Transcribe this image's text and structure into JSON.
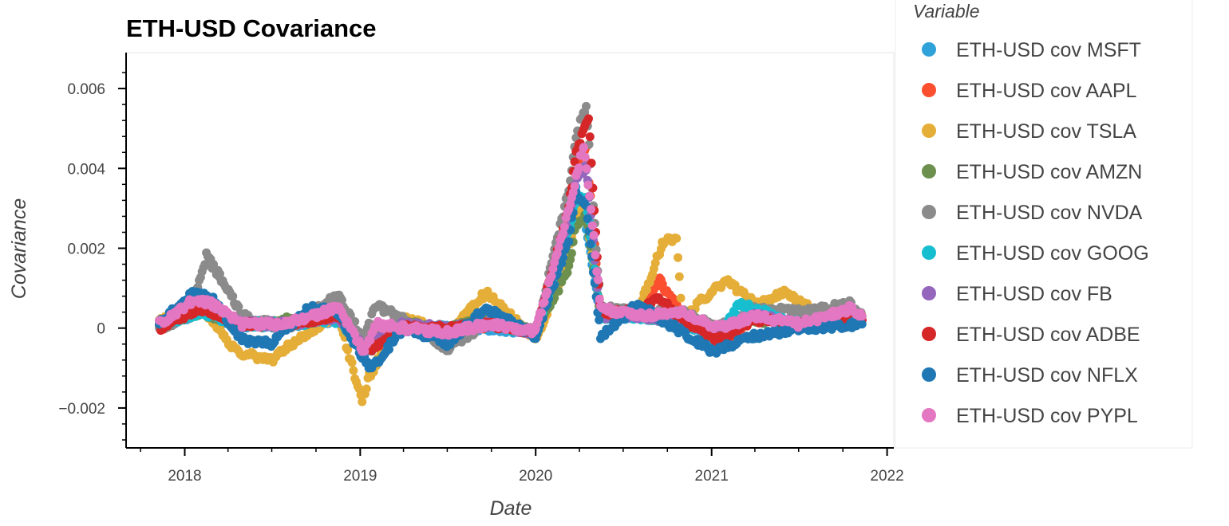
{
  "chart_data": {
    "type": "scatter",
    "title": "ETH-USD Covariance",
    "xlabel": "Date",
    "ylabel": "Covariance",
    "xlim": [
      "2017-09-01",
      "2022-01-15"
    ],
    "ylim": [
      -0.003,
      0.0069
    ],
    "x_ticks": [
      "2018-01-01",
      "2019-01-01",
      "2020-01-01",
      "2021-01-01",
      "2022-01-01"
    ],
    "x_tick_labels": [
      "2018",
      "2019",
      "2020",
      "2021",
      "2022"
    ],
    "y_ticks": [
      -0.002,
      0,
      0.002,
      0.004,
      0.006
    ],
    "y_tick_labels": [
      "−0.002",
      "0",
      "0.002",
      "0.004",
      "0.006"
    ],
    "legend_title": "Variable",
    "legend_position": "right",
    "grid": false,
    "series": [
      {
        "name": "ETH-USD cov MSFT",
        "color": "#30a2da",
        "points": [
          [
            "2017-11-09",
            5e-05
          ],
          [
            "2018-02-01",
            0.0004
          ],
          [
            "2018-05-01",
            5e-05
          ],
          [
            "2018-08-01",
            0.0001
          ],
          [
            "2018-11-15",
            0.0002
          ],
          [
            "2019-01-10",
            -0.0006
          ],
          [
            "2019-04-01",
            0.0
          ],
          [
            "2019-07-01",
            0.0
          ],
          [
            "2019-10-01",
            0.0
          ],
          [
            "2020-01-01",
            -0.0001
          ],
          [
            "2020-03-10",
            0.0025
          ],
          [
            "2020-03-25",
            0.0035
          ],
          [
            "2020-04-15",
            0.0025
          ],
          [
            "2020-05-15",
            0.0003
          ],
          [
            "2020-08-01",
            0.0003
          ],
          [
            "2020-11-01",
            0.0002
          ],
          [
            "2021-01-15",
            -0.0002
          ],
          [
            "2021-04-01",
            0.0003
          ],
          [
            "2021-07-01",
            0.0001
          ],
          [
            "2021-11-10",
            0.0002
          ]
        ]
      },
      {
        "name": "ETH-USD cov AAPL",
        "color": "#fc4f30",
        "points": [
          [
            "2017-11-09",
            0.0
          ],
          [
            "2018-02-01",
            0.0005
          ],
          [
            "2018-05-01",
            0.0001
          ],
          [
            "2018-08-01",
            0.0001
          ],
          [
            "2018-11-15",
            0.0003
          ],
          [
            "2019-01-10",
            -0.0005
          ],
          [
            "2019-04-01",
            0.0
          ],
          [
            "2019-07-01",
            -0.0001
          ],
          [
            "2019-10-01",
            0.0001
          ],
          [
            "2020-01-01",
            -0.0001
          ],
          [
            "2020-03-10",
            0.0028
          ],
          [
            "2020-03-25",
            0.0042
          ],
          [
            "2020-04-15",
            0.0045
          ],
          [
            "2020-05-15",
            0.0004
          ],
          [
            "2020-08-01",
            0.0004
          ],
          [
            "2020-09-15",
            0.0012
          ],
          [
            "2020-11-01",
            0.0003
          ],
          [
            "2021-01-15",
            -0.0004
          ],
          [
            "2021-04-01",
            0.0003
          ],
          [
            "2021-07-01",
            0.0001
          ],
          [
            "2021-11-10",
            0.0002
          ]
        ]
      },
      {
        "name": "ETH-USD cov TSLA",
        "color": "#e5ae38",
        "points": [
          [
            "2017-11-09",
            0.0002
          ],
          [
            "2018-02-01",
            0.0006
          ],
          [
            "2018-04-20",
            -0.0006
          ],
          [
            "2018-07-01",
            -0.0008
          ],
          [
            "2018-09-01",
            -0.0002
          ],
          [
            "2018-11-15",
            0.0003
          ],
          [
            "2019-01-05",
            -0.0018
          ],
          [
            "2019-01-20",
            -0.0012
          ],
          [
            "2019-04-01",
            0.0003
          ],
          [
            "2019-07-01",
            -0.0002
          ],
          [
            "2019-09-20",
            0.0009
          ],
          [
            "2020-01-01",
            -0.0003
          ],
          [
            "2020-03-10",
            0.0018
          ],
          [
            "2020-03-25",
            0.003
          ],
          [
            "2020-04-15",
            0.0028
          ],
          [
            "2020-05-15",
            0.0004
          ],
          [
            "2020-08-01",
            0.0004
          ],
          [
            "2020-09-20",
            0.0021
          ],
          [
            "2020-10-20",
            0.0023
          ],
          [
            "2020-11-01",
            0.0003
          ],
          [
            "2021-02-01",
            0.0012
          ],
          [
            "2021-04-01",
            0.0006
          ],
          [
            "2021-06-01",
            0.0009
          ],
          [
            "2021-09-01",
            0.0002
          ],
          [
            "2021-11-10",
            0.0003
          ]
        ]
      },
      {
        "name": "ETH-USD cov AMZN",
        "color": "#6d904f",
        "points": [
          [
            "2017-11-09",
            0.0001
          ],
          [
            "2018-02-01",
            0.0004
          ],
          [
            "2018-05-01",
            0.0001
          ],
          [
            "2018-08-01",
            0.0002
          ],
          [
            "2018-11-15",
            0.0003
          ],
          [
            "2019-01-10",
            -0.0004
          ],
          [
            "2019-04-01",
            0.0001
          ],
          [
            "2019-07-01",
            0.0
          ],
          [
            "2019-10-01",
            0.0002
          ],
          [
            "2020-01-01",
            -0.0001
          ],
          [
            "2020-03-10",
            0.0015
          ],
          [
            "2020-03-25",
            0.0026
          ],
          [
            "2020-04-15",
            0.0028
          ],
          [
            "2020-05-15",
            0.0003
          ],
          [
            "2020-08-01",
            0.0003
          ],
          [
            "2020-11-01",
            0.0002
          ],
          [
            "2021-01-15",
            0.0
          ],
          [
            "2021-04-01",
            0.0002
          ],
          [
            "2021-07-01",
            0.0001
          ],
          [
            "2021-11-10",
            0.0002
          ]
        ]
      },
      {
        "name": "ETH-USD cov NVDA",
        "color": "#8b8b8b",
        "points": [
          [
            "2017-11-09",
            0.0
          ],
          [
            "2018-01-10",
            0.0003
          ],
          [
            "2018-02-15",
            0.0018
          ],
          [
            "2018-03-15",
            0.0013
          ],
          [
            "2018-05-01",
            0.0003
          ],
          [
            "2018-08-01",
            0.0
          ],
          [
            "2018-11-15",
            0.0008
          ],
          [
            "2019-01-10",
            -0.0003
          ],
          [
            "2019-02-01",
            0.0006
          ],
          [
            "2019-04-01",
            0.0002
          ],
          [
            "2019-07-01",
            -0.0005
          ],
          [
            "2019-10-01",
            0.0002
          ],
          [
            "2020-01-01",
            -0.0001
          ],
          [
            "2020-03-10",
            0.0035
          ],
          [
            "2020-03-25",
            0.0048
          ],
          [
            "2020-04-15",
            0.0056
          ],
          [
            "2020-05-15",
            0.0005
          ],
          [
            "2020-08-01",
            0.0004
          ],
          [
            "2020-11-01",
            0.0004
          ],
          [
            "2021-01-15",
            0.0
          ],
          [
            "2021-04-01",
            0.0005
          ],
          [
            "2021-07-01",
            0.0004
          ],
          [
            "2021-10-15",
            0.0006
          ],
          [
            "2021-11-10",
            0.0003
          ]
        ]
      },
      {
        "name": "ETH-USD cov GOOG",
        "color": "#17becf",
        "points": [
          [
            "2017-11-09",
            0.0001
          ],
          [
            "2018-02-01",
            0.0004
          ],
          [
            "2018-05-01",
            0.0001
          ],
          [
            "2018-08-01",
            0.0001
          ],
          [
            "2018-11-15",
            0.0002
          ],
          [
            "2019-01-10",
            -0.0005
          ],
          [
            "2019-04-01",
            0.0
          ],
          [
            "2019-07-01",
            0.0
          ],
          [
            "2019-10-01",
            0.0001
          ],
          [
            "2020-01-01",
            -0.0001
          ],
          [
            "2020-03-10",
            0.0024
          ],
          [
            "2020-03-25",
            0.0033
          ],
          [
            "2020-04-15",
            0.0032
          ],
          [
            "2020-05-15",
            0.0003
          ],
          [
            "2020-08-01",
            0.0003
          ],
          [
            "2020-11-01",
            0.0002
          ],
          [
            "2021-01-05",
            -0.0003
          ],
          [
            "2021-03-01",
            0.0006
          ],
          [
            "2021-07-01",
            0.0001
          ],
          [
            "2021-11-10",
            0.0002
          ]
        ]
      },
      {
        "name": "ETH-USD cov FB",
        "color": "#9467bd",
        "points": [
          [
            "2017-11-09",
            0.0001
          ],
          [
            "2018-02-01",
            0.0005
          ],
          [
            "2018-05-01",
            0.0001
          ],
          [
            "2018-08-01",
            0.0001
          ],
          [
            "2018-11-15",
            0.0003
          ],
          [
            "2019-01-10",
            -0.0005
          ],
          [
            "2019-04-01",
            0.0001
          ],
          [
            "2019-07-01",
            0.0
          ],
          [
            "2019-10-01",
            0.0001
          ],
          [
            "2020-01-01",
            -0.0001
          ],
          [
            "2020-03-10",
            0.0027
          ],
          [
            "2020-03-25",
            0.0038
          ],
          [
            "2020-04-15",
            0.004
          ],
          [
            "2020-05-15",
            0.0003
          ],
          [
            "2020-08-01",
            0.0003
          ],
          [
            "2020-11-01",
            0.0002
          ],
          [
            "2021-01-15",
            -0.0002
          ],
          [
            "2021-04-01",
            0.0003
          ],
          [
            "2021-07-01",
            0.0001
          ],
          [
            "2021-11-10",
            0.0002
          ]
        ]
      },
      {
        "name": "ETH-USD cov ADBE",
        "color": "#d62728",
        "points": [
          [
            "2017-11-09",
            0.0
          ],
          [
            "2018-02-01",
            0.0005
          ],
          [
            "2018-05-01",
            0.0001
          ],
          [
            "2018-08-01",
            0.0001
          ],
          [
            "2018-11-15",
            0.0003
          ],
          [
            "2019-01-10",
            -0.0006
          ],
          [
            "2019-04-01",
            0.0
          ],
          [
            "2019-07-01",
            0.0
          ],
          [
            "2019-10-01",
            0.0001
          ],
          [
            "2020-01-01",
            -0.0001
          ],
          [
            "2020-03-10",
            0.003
          ],
          [
            "2020-03-25",
            0.0044
          ],
          [
            "2020-04-20",
            0.0053
          ],
          [
            "2020-05-15",
            0.0004
          ],
          [
            "2020-08-01",
            0.0004
          ],
          [
            "2020-09-10",
            0.0008
          ],
          [
            "2020-11-01",
            0.0002
          ],
          [
            "2021-01-15",
            -0.0003
          ],
          [
            "2021-04-01",
            0.0002
          ],
          [
            "2021-07-01",
            0.0001
          ],
          [
            "2021-11-10",
            0.0002
          ]
        ]
      },
      {
        "name": "ETH-USD cov NFLX",
        "color": "#1f77b4",
        "points": [
          [
            "2017-11-09",
            0.0001
          ],
          [
            "2018-01-20",
            0.0009
          ],
          [
            "2018-03-01",
            0.0007
          ],
          [
            "2018-05-01",
            -0.0003
          ],
          [
            "2018-07-01",
            -0.0004
          ],
          [
            "2018-09-15",
            0.0005
          ],
          [
            "2018-11-15",
            0.0004
          ],
          [
            "2019-01-10",
            -0.0008
          ],
          [
            "2019-01-25",
            -0.001
          ],
          [
            "2019-04-01",
            0.0
          ],
          [
            "2019-07-01",
            -0.0004
          ],
          [
            "2019-09-20",
            0.0005
          ],
          [
            "2020-01-01",
            -0.0002
          ],
          [
            "2020-03-10",
            0.0022
          ],
          [
            "2020-03-25",
            0.0034
          ],
          [
            "2020-04-15",
            0.003
          ],
          [
            "2020-05-15",
            -0.0002
          ],
          [
            "2020-08-01",
            0.0006
          ],
          [
            "2020-11-01",
            -0.0001
          ],
          [
            "2021-01-05",
            -0.0006
          ],
          [
            "2021-04-01",
            -0.0002
          ],
          [
            "2021-07-01",
            0.0
          ],
          [
            "2021-11-10",
            0.0001
          ]
        ]
      },
      {
        "name": "ETH-USD cov PYPL",
        "color": "#e377c2",
        "points": [
          [
            "2017-11-09",
            0.0001
          ],
          [
            "2018-01-20",
            0.0007
          ],
          [
            "2018-03-01",
            0.0006
          ],
          [
            "2018-05-01",
            0.0001
          ],
          [
            "2018-08-01",
            0.0001
          ],
          [
            "2018-11-15",
            0.0005
          ],
          [
            "2019-01-10",
            -0.0006
          ],
          [
            "2019-02-01",
            0.0001
          ],
          [
            "2019-04-01",
            0.0
          ],
          [
            "2019-07-01",
            -0.0001
          ],
          [
            "2019-10-01",
            0.0001
          ],
          [
            "2020-01-01",
            -0.0001
          ],
          [
            "2020-03-10",
            0.003
          ],
          [
            "2020-03-25",
            0.0038
          ],
          [
            "2020-04-10",
            0.0046
          ],
          [
            "2020-04-25",
            0.003
          ],
          [
            "2020-05-15",
            0.0005
          ],
          [
            "2020-08-01",
            0.0003
          ],
          [
            "2020-11-01",
            0.0004
          ],
          [
            "2021-01-15",
            0.0
          ],
          [
            "2021-04-01",
            0.0003
          ],
          [
            "2021-07-01",
            0.0001
          ],
          [
            "2021-10-20",
            0.0005
          ],
          [
            "2021-11-10",
            0.0003
          ]
        ]
      }
    ]
  }
}
